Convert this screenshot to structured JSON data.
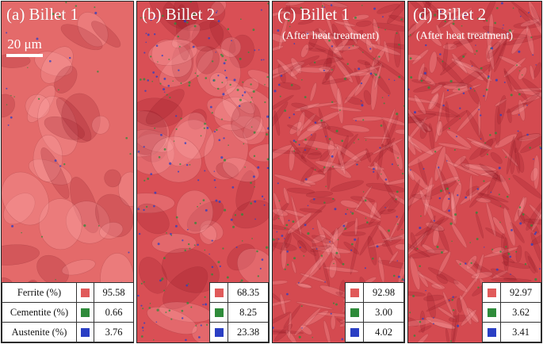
{
  "colors": {
    "ferrite": "#e05a5a",
    "cementite": "#2e8b3a",
    "austenite": "#2a3fc4",
    "panel_a_bg": "#e46a6a",
    "panel_b_bg": "#d94f55",
    "panel_c_bg": "#d44a50",
    "panel_d_bg": "#d44a50"
  },
  "scale_bar": "20 μm",
  "phase_names": [
    "Ferrite (%)",
    "Cementite (%)",
    "Austenite (%)"
  ],
  "panels": [
    {
      "label": "(a)   Billet 1",
      "subtitle": "",
      "values": [
        "95.58",
        "0.66",
        "3.76"
      ]
    },
    {
      "label": "(b)   Billet 2",
      "subtitle": "",
      "values": [
        "68.35",
        "8.25",
        "23.38"
      ]
    },
    {
      "label": "(c)   Billet 1",
      "subtitle": "(After heat treatment)",
      "values": [
        "92.98",
        "3.00",
        "4.02"
      ]
    },
    {
      "label": "(d)   Billet 2",
      "subtitle": "(After heat treatment)",
      "values": [
        "92.97",
        "3.62",
        "3.41"
      ]
    }
  ]
}
